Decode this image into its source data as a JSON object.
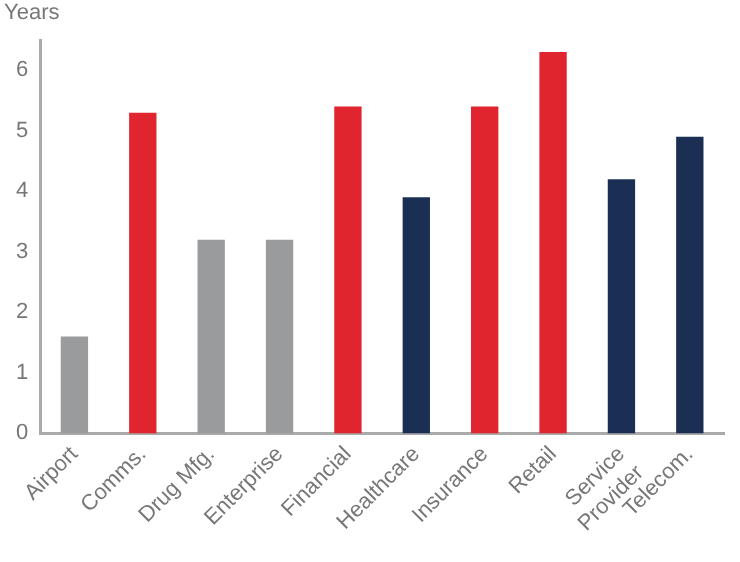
{
  "chart_data": {
    "type": "bar",
    "ylabel": "Years",
    "categories": [
      "Airport",
      "Comms.",
      "Drug Mfg.",
      "Enterprise",
      "Financial",
      "Healthcare",
      "Insurance",
      "Retail",
      "Service\nProvider",
      "Telecom."
    ],
    "values": [
      1.6,
      5.3,
      3.2,
      3.2,
      5.4,
      3.9,
      5.4,
      6.3,
      4.2,
      4.9
    ],
    "colors": [
      "#9a9b9d",
      "#e0252f",
      "#9a9b9d",
      "#9a9b9d",
      "#e0252f",
      "#1b2f55",
      "#e0252f",
      "#e0252f",
      "#1b2f55",
      "#1b2f55"
    ],
    "ylim": [
      0,
      6.5
    ],
    "yticks": [
      0,
      1,
      2,
      3,
      4,
      5,
      6
    ],
    "grid": false,
    "legend": false
  }
}
